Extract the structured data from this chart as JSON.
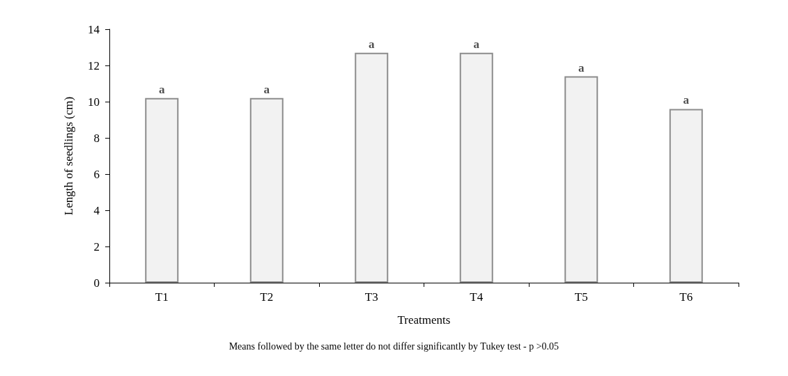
{
  "chart_data": {
    "type": "bar",
    "xlabel": "Treatments",
    "ylabel": "Length of seedlings (cm)",
    "categories": [
      "T1",
      "T2",
      "T3",
      "T4",
      "T5",
      "T6"
    ],
    "values": [
      10.2,
      10.2,
      12.7,
      12.7,
      11.4,
      9.6
    ],
    "color": "#f2f2f2",
    "ylim": [
      0,
      14
    ],
    "yticks": [
      0,
      2,
      4,
      6,
      8,
      10,
      12,
      14
    ],
    "grid": false,
    "annotations": [
      {
        "text": "a",
        "x": "T1",
        "y": 10.2
      },
      {
        "text": "a",
        "x": "T2",
        "y": 10.2
      },
      {
        "text": "a",
        "x": "T3",
        "y": 12.7
      },
      {
        "text": "a",
        "x": "T4",
        "y": 12.7
      },
      {
        "text": "a",
        "x": "T5",
        "y": 11.4
      },
      {
        "text": "a",
        "x": "T6",
        "y": 9.6
      },
      "Means followed by the same letter do not differ significantly by Tukey test - p >0.05"
    ]
  }
}
